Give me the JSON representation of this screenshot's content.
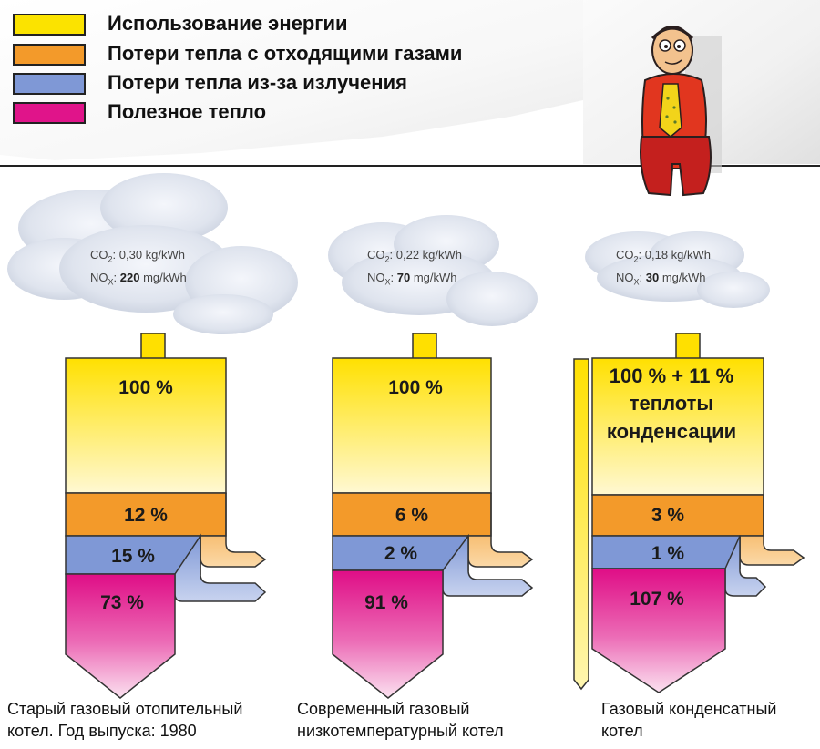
{
  "legend": [
    {
      "label": "Использование энергии",
      "color": "#fbe300"
    },
    {
      "label": "Потери тепла с отходящими газами",
      "color": "#f39a2a"
    },
    {
      "label": "Потери тепла из-за излучения",
      "color": "#7f98d6"
    },
    {
      "label": "Полезное тепло",
      "color": "#e0148a"
    }
  ],
  "boilers": [
    {
      "energy": "100 %",
      "flue_loss": "12 %",
      "radiation_loss": "15 %",
      "useful": "73 %",
      "co2_unit": "0,30 kg/kWh",
      "nox_value": "220",
      "nox_unit": "mg/kWh",
      "caption_line1": "Старый газовый отопительный",
      "caption_line2": "котел. Год выпуска: 1980"
    },
    {
      "energy": "100 %",
      "flue_loss": "6 %",
      "radiation_loss": "2 %",
      "useful": "91 %",
      "co2_unit": "0,22 kg/kWh",
      "nox_value": "70",
      "nox_unit": "mg/kWh",
      "caption_line1": "Современный газовый",
      "caption_line2": "низкотемпературный котел"
    },
    {
      "energy_line1": "100 % + 11 %",
      "energy_line2": "теплоты",
      "energy_line3": "конденсации",
      "flue_loss": "3 %",
      "radiation_loss": "1 %",
      "useful": "107 %",
      "co2_unit": "0,18 kg/kWh",
      "nox_value": "30",
      "nox_unit": "mg/kWh",
      "caption_line1": "Газовый конденсатный",
      "caption_line2": "котел"
    }
  ],
  "emission_labels": {
    "co2": "CO",
    "co2_sub": "2",
    "nox": "NO",
    "nox_sub": "X"
  },
  "colors": {
    "yellow_top": "#ffe400",
    "yellow_bottom": "#fff7c9",
    "orange": "#f39a2a",
    "blue": "#7f98d6",
    "magenta": "#e0148a",
    "magenta_light": "#f7c6e4"
  }
}
